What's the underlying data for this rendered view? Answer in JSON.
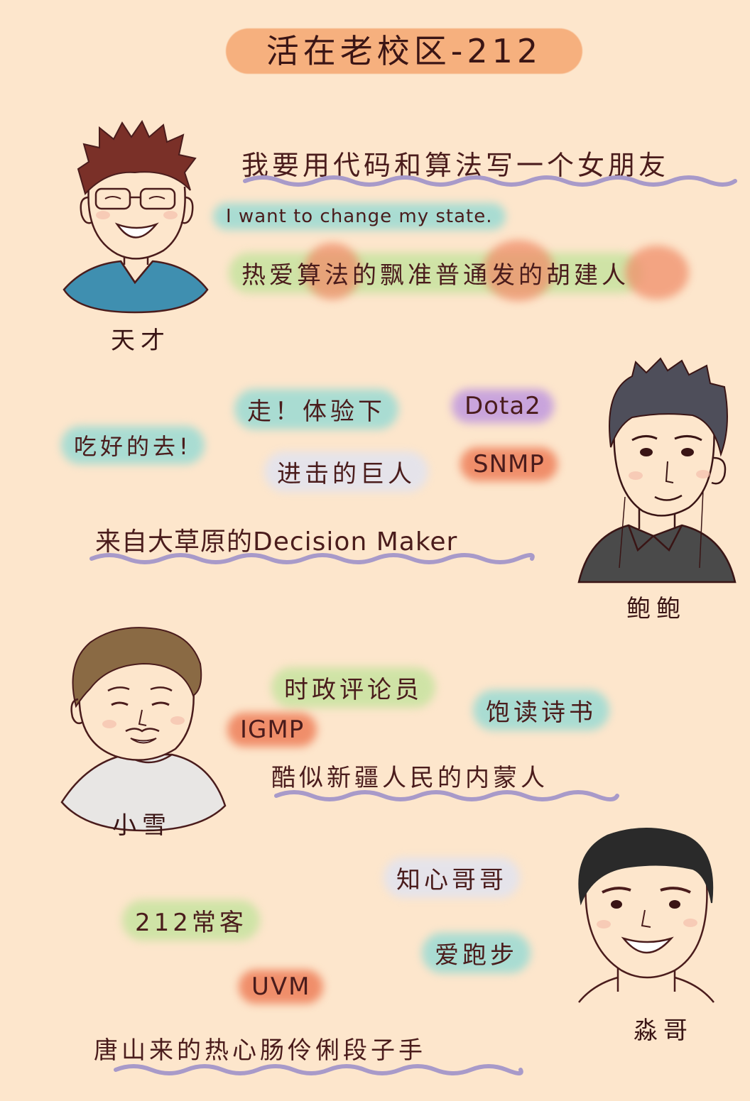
{
  "title": "活在老校区-212",
  "people": [
    {
      "name": "天才",
      "quote": "我要用代码和算法写一个女朋友",
      "motto": "I want to change my state.",
      "desc": "热爱算法的飘准普通发的胡建人"
    },
    {
      "name": "鲍鲍",
      "tags": [
        "走！体验下",
        "Dota2",
        "吃好的去!",
        "进击的巨人",
        "SNMP"
      ],
      "desc": "来自大草原的Decision Maker"
    },
    {
      "name": "小雪",
      "tags": [
        "时政评论员",
        "饱读诗书",
        "IGMP"
      ],
      "desc": "酷似新疆人民的内蒙人"
    },
    {
      "name": "淼哥",
      "tags": [
        "知心哥哥",
        "212常客",
        "爱跑步",
        "UVM"
      ],
      "desc": "唐山来的热心肠伶俐段子手"
    }
  ],
  "colors": {
    "background": "#fde6cc",
    "title_pill": "#f6b07e",
    "teal": "#a9dcd2",
    "green": "#cfe3a6",
    "red": "#f08e6a",
    "purple": "#c9a4dc",
    "underline": "#a89ac9"
  }
}
